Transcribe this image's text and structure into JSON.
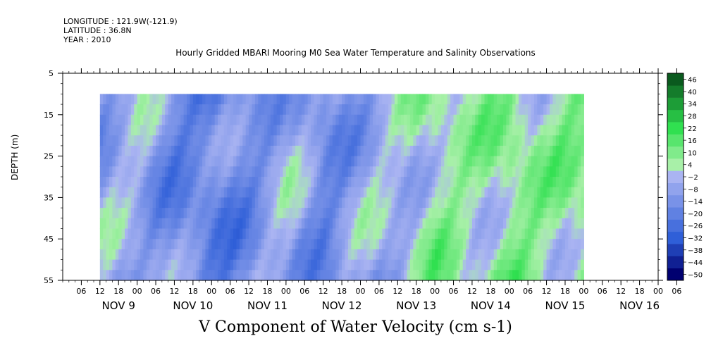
{
  "header": {
    "longitude": "LONGITUDE : 121.9W(-121.9)",
    "latitude": "LATITUDE : 36.8N",
    "year": "YEAR : 2010",
    "title": "Hourly Gridded MBARI Mooring M0 Sea Water Temperature and Salinity Observations"
  },
  "footer": {
    "variable_label": "V Component of Water Velocity (cm s-1)"
  },
  "chart_data": {
    "type": "heatmap",
    "title": "Hourly Gridded MBARI Mooring M0 Sea Water Temperature and Salinity Observations",
    "xlabel": "",
    "ylabel": "DEPTH (m)",
    "colorbar_label": "V Component of Water Velocity (cm s-1)",
    "y_ticks": [
      5,
      15,
      25,
      35,
      45,
      55
    ],
    "ylim": [
      55,
      5
    ],
    "hour_tick_labels": [
      "06",
      "12",
      "18",
      "00",
      "06",
      "12",
      "18",
      "00",
      "06",
      "12",
      "18",
      "00",
      "06",
      "12",
      "18",
      "00",
      "06",
      "12",
      "18",
      "00",
      "06",
      "12",
      "18",
      "00",
      "06",
      "12",
      "18",
      "00",
      "06",
      "12",
      "18",
      "00",
      "06"
    ],
    "day_labels": [
      "NOV  9",
      "NOV 10",
      "NOV 11",
      "NOV 12",
      "NOV 13",
      "NOV 14",
      "NOV 15",
      "NOV 16"
    ],
    "data_time_range_hours": [
      12,
      168
    ],
    "data_depth_range_m": [
      10,
      55
    ],
    "colorbar_levels": [
      -50,
      -44,
      -38,
      -32,
      -26,
      -20,
      -14,
      -8,
      -2,
      4,
      10,
      16,
      22,
      28,
      34,
      40,
      46
    ],
    "colors": {
      "negative_strong": "#000070",
      "negative_mid": "#2f5fd8",
      "negative_weak": "#aab4f2",
      "positive_weak": "#a8f0a8",
      "positive_mid": "#30e050",
      "positive_strong": "#0a5a1e"
    },
    "field_summary": {
      "columns_hours": [
        12,
        24,
        36,
        48,
        60,
        72,
        84,
        96,
        108,
        120,
        132,
        144,
        156,
        168
      ],
      "mean_v_cm_s": [
        -8,
        -6,
        -16,
        -20,
        -14,
        -6,
        -16,
        -8,
        -4,
        6,
        2,
        10,
        4,
        10
      ]
    }
  }
}
